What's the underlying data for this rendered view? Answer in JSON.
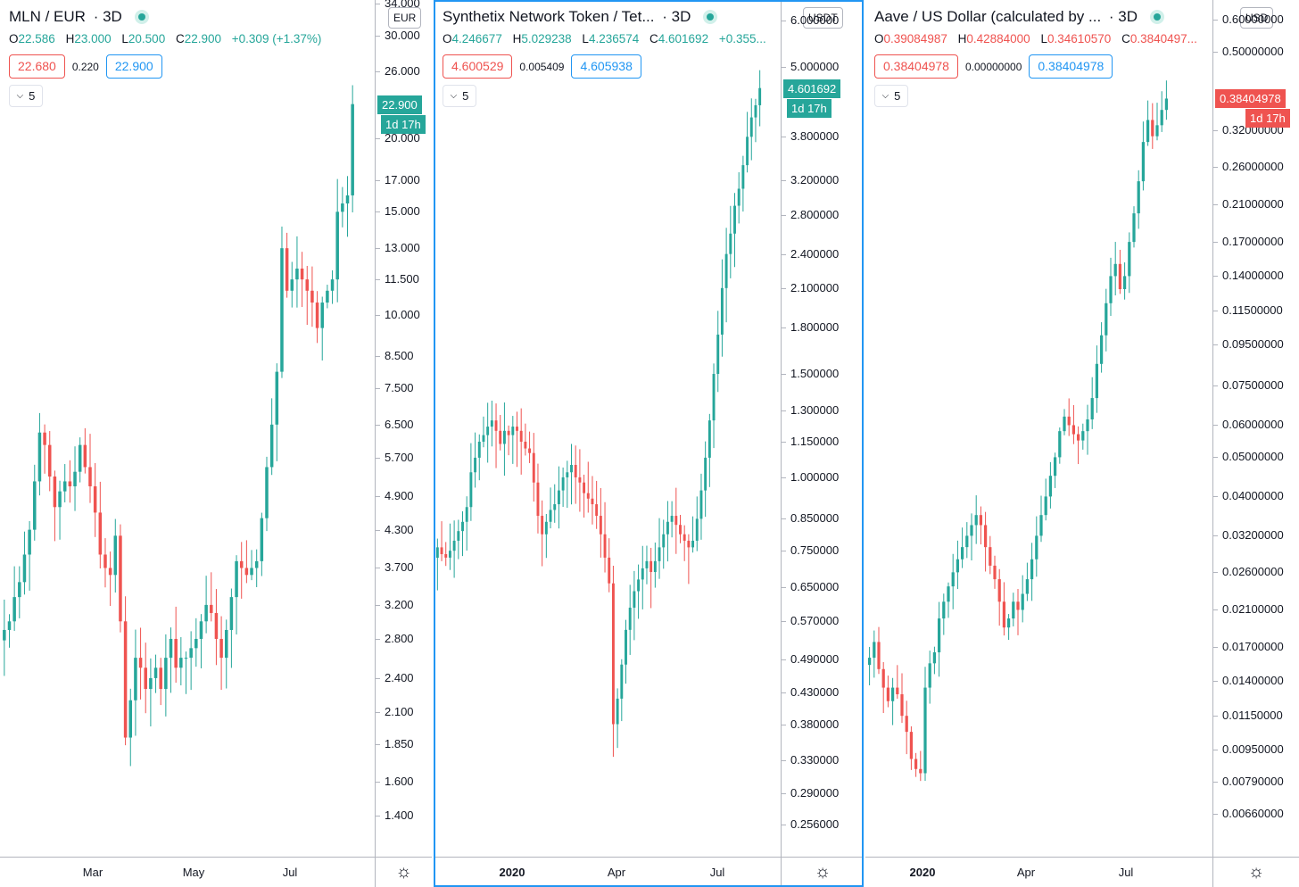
{
  "colors": {
    "up": "#26a69a",
    "down": "#ef5350",
    "accent": "#2196f3",
    "axis": "#b2b5be"
  },
  "panes": [
    {
      "title": "MLN / EUR",
      "timeframe": "3D",
      "ohlc": {
        "o_label": "O",
        "o": "22.586",
        "h_label": "H",
        "h": "23.000",
        "l_label": "L",
        "l": "20.500",
        "c_label": "C",
        "c": "22.900",
        "change": "+0.309 (+1.37%)"
      },
      "sell_price": "22.680",
      "spread": "0.220",
      "buy_price": "22.900",
      "collapse_count": "5",
      "currency": "EUR",
      "last_price": "22.900",
      "countdown": "1d 17h",
      "price_ticks": [
        "34.000",
        "30.000",
        "26.000",
        "20.000",
        "17.000",
        "15.000",
        "13.000",
        "11.500",
        "10.000",
        "8.500",
        "7.500",
        "6.500",
        "5.700",
        "4.900",
        "4.300",
        "3.700",
        "3.200",
        "2.800",
        "2.400",
        "2.100",
        "1.850",
        "1.600",
        "1.400"
      ],
      "time_labels": [
        "Mar",
        "May",
        "Jul"
      ],
      "settings_icon": "gear-icon"
    },
    {
      "title": "Synthetix Network Token / Tet...",
      "timeframe": "3D",
      "ohlc": {
        "o_label": "O",
        "o": "4.246677",
        "h_label": "H",
        "h": "5.029238",
        "l_label": "L",
        "l": "4.236574",
        "c_label": "C",
        "c": "4.601692",
        "change": "+0.355..."
      },
      "sell_price": "4.600529",
      "spread": "0.005409",
      "buy_price": "4.605938",
      "collapse_count": "5",
      "currency": "USDT",
      "last_price": "4.601692",
      "countdown": "1d 17h",
      "price_ticks": [
        "6.000000",
        "5.000000",
        "3.800000",
        "3.200000",
        "2.800000",
        "2.400000",
        "2.100000",
        "1.800000",
        "1.500000",
        "1.300000",
        "1.150000",
        "1.000000",
        "0.850000",
        "0.750000",
        "0.650000",
        "0.570000",
        "0.490000",
        "0.430000",
        "0.380000",
        "0.330000",
        "0.290000",
        "0.256000"
      ],
      "time_labels": [
        "2020",
        "Apr",
        "Jul"
      ],
      "settings_icon": "gear-icon"
    },
    {
      "title": "Aave / US Dollar (calculated by ...",
      "timeframe": "3D",
      "ohlc": {
        "o_label": "O",
        "o": "0.39084987",
        "h_label": "H",
        "h": "0.42884000",
        "l_label": "L",
        "l": "0.34610570",
        "c_label": "C",
        "c": "0.3840497..."
      },
      "sell_price": "0.38404978",
      "spread": "0.00000000",
      "buy_price": "0.38404978",
      "collapse_count": "5",
      "currency": "USD",
      "last_price": "0.38404978",
      "countdown": "1d 17h",
      "price_ticks": [
        "0.60000000",
        "0.50000000",
        "0.32000000",
        "0.26000000",
        "0.21000000",
        "0.17000000",
        "0.14000000",
        "0.11500000",
        "0.09500000",
        "0.07500000",
        "0.06000000",
        "0.05000000",
        "0.04000000",
        "0.03200000",
        "0.02600000",
        "0.02100000",
        "0.01700000",
        "0.01400000",
        "0.01150000",
        "0.00950000",
        "0.00790000",
        "0.00660000"
      ],
      "time_labels": [
        "2020",
        "Apr",
        "Jul"
      ],
      "settings_icon": "gear-icon"
    }
  ],
  "chart_data": [
    {
      "type": "candlestick",
      "title": "MLN / EUR",
      "timeframe": "3D",
      "scale": "log",
      "ylim": [
        1.35,
        34
      ],
      "x_labels": [
        "Mar",
        "May",
        "Jul"
      ],
      "closes": [
        2.9,
        3.0,
        3.3,
        3.5,
        3.9,
        4.3,
        5.2,
        6.3,
        6.0,
        5.3,
        4.7,
        5.0,
        5.2,
        5.1,
        5.4,
        6.0,
        5.5,
        5.1,
        4.6,
        3.9,
        3.7,
        3.6,
        4.2,
        3.0,
        1.9,
        2.2,
        2.6,
        2.5,
        2.3,
        2.4,
        2.5,
        2.3,
        2.6,
        2.8,
        2.5,
        2.6,
        2.6,
        2.7,
        2.8,
        3.0,
        3.2,
        3.1,
        2.8,
        2.6,
        2.9,
        3.3,
        3.8,
        3.7,
        3.6,
        3.7,
        3.8,
        4.5,
        5.5,
        6.5,
        8.0,
        13.0,
        11.0,
        11.5,
        12.0,
        11.5,
        11.0,
        10.5,
        9.5,
        10.5,
        11.0,
        11.5,
        15.0,
        15.5,
        16.0,
        22.9
      ],
      "last": 22.9
    },
    {
      "type": "candlestick",
      "title": "Synthetix Network Token / Tet...",
      "timeframe": "3D",
      "scale": "log",
      "ylim": [
        0.245,
        6.1
      ],
      "x_labels": [
        "2020",
        "Apr",
        "Jul"
      ],
      "closes": [
        0.76,
        0.74,
        0.73,
        0.75,
        0.78,
        0.81,
        0.84,
        0.89,
        1.02,
        1.08,
        1.15,
        1.18,
        1.22,
        1.25,
        1.2,
        1.14,
        1.2,
        1.18,
        1.22,
        1.2,
        1.15,
        1.12,
        1.1,
        0.98,
        0.86,
        0.8,
        0.84,
        0.88,
        0.9,
        0.95,
        1.0,
        1.02,
        1.05,
        1.0,
        0.98,
        0.94,
        0.92,
        0.9,
        0.86,
        0.8,
        0.73,
        0.66,
        0.38,
        0.42,
        0.48,
        0.55,
        0.6,
        0.64,
        0.67,
        0.7,
        0.72,
        0.69,
        0.72,
        0.76,
        0.8,
        0.84,
        0.86,
        0.83,
        0.8,
        0.78,
        0.76,
        0.78,
        0.85,
        0.95,
        1.08,
        1.25,
        1.5,
        1.75,
        2.1,
        2.4,
        2.6,
        2.9,
        3.1,
        3.4,
        3.8,
        4.1,
        4.3,
        4.6
      ],
      "last": 4.601692
    },
    {
      "type": "candlestick",
      "title": "Aave / US Dollar (calculated by ...",
      "timeframe": "3D",
      "scale": "log",
      "ylim": [
        0.0062,
        0.62
      ],
      "x_labels": [
        "2020",
        "Apr",
        "Jul"
      ],
      "closes": [
        0.016,
        0.0175,
        0.015,
        0.0135,
        0.0125,
        0.0135,
        0.013,
        0.0115,
        0.0105,
        0.009,
        0.0085,
        0.0083,
        0.0135,
        0.0155,
        0.0165,
        0.02,
        0.022,
        0.024,
        0.026,
        0.028,
        0.03,
        0.032,
        0.034,
        0.036,
        0.034,
        0.03,
        0.027,
        0.025,
        0.022,
        0.019,
        0.02,
        0.022,
        0.021,
        0.023,
        0.025,
        0.028,
        0.032,
        0.036,
        0.04,
        0.045,
        0.05,
        0.058,
        0.063,
        0.06,
        0.057,
        0.055,
        0.058,
        0.062,
        0.07,
        0.085,
        0.1,
        0.12,
        0.14,
        0.15,
        0.13,
        0.14,
        0.17,
        0.2,
        0.24,
        0.3,
        0.34,
        0.31,
        0.33,
        0.36,
        0.384
      ],
      "last": 0.38404978
    }
  ]
}
